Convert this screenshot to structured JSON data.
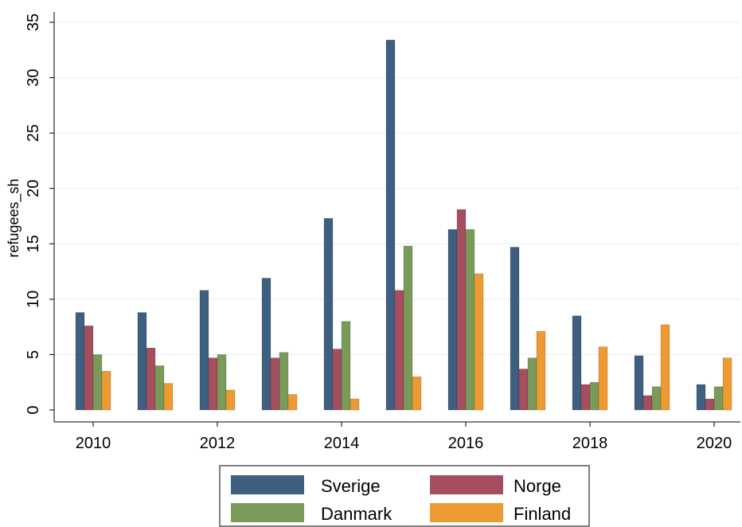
{
  "chart_data": {
    "type": "bar",
    "ylabel": "refugees_sh",
    "xlabel": "",
    "x": [
      2010,
      2011,
      2012,
      2013,
      2014,
      2015,
      2016,
      2017,
      2018,
      2019,
      2020
    ],
    "x_tick_labels": [
      "2010",
      "2012",
      "2014",
      "2016",
      "2018",
      "2020"
    ],
    "x_ticks": [
      2010,
      2012,
      2014,
      2016,
      2018,
      2020
    ],
    "ylim": [
      0,
      35
    ],
    "y_ticks": [
      0,
      5,
      10,
      15,
      20,
      25,
      30,
      35
    ],
    "y_tick_labels": [
      "0",
      "5",
      "10",
      "15",
      "20",
      "25",
      "30",
      "35"
    ],
    "grid": true,
    "legend_position": "bottom",
    "series": [
      {
        "name": "Sverige",
        "color": "#3e5f80",
        "values": [
          8.8,
          8.8,
          10.8,
          11.9,
          17.3,
          33.4,
          16.3,
          14.7,
          8.5,
          4.9,
          2.3
        ]
      },
      {
        "name": "Norge",
        "color": "#a54e5e",
        "values": [
          7.6,
          5.6,
          4.7,
          4.7,
          5.5,
          10.8,
          18.1,
          3.7,
          2.3,
          1.3,
          1.0
        ]
      },
      {
        "name": "Danmark",
        "color": "#7a9a5a",
        "values": [
          5.0,
          4.0,
          5.0,
          5.2,
          8.0,
          14.8,
          16.3,
          4.7,
          2.5,
          2.1,
          2.1
        ]
      },
      {
        "name": "Finland",
        "color": "#ee9a32",
        "values": [
          3.5,
          2.4,
          1.8,
          1.4,
          1.0,
          3.0,
          12.3,
          7.1,
          5.7,
          7.7,
          4.7
        ]
      }
    ]
  }
}
